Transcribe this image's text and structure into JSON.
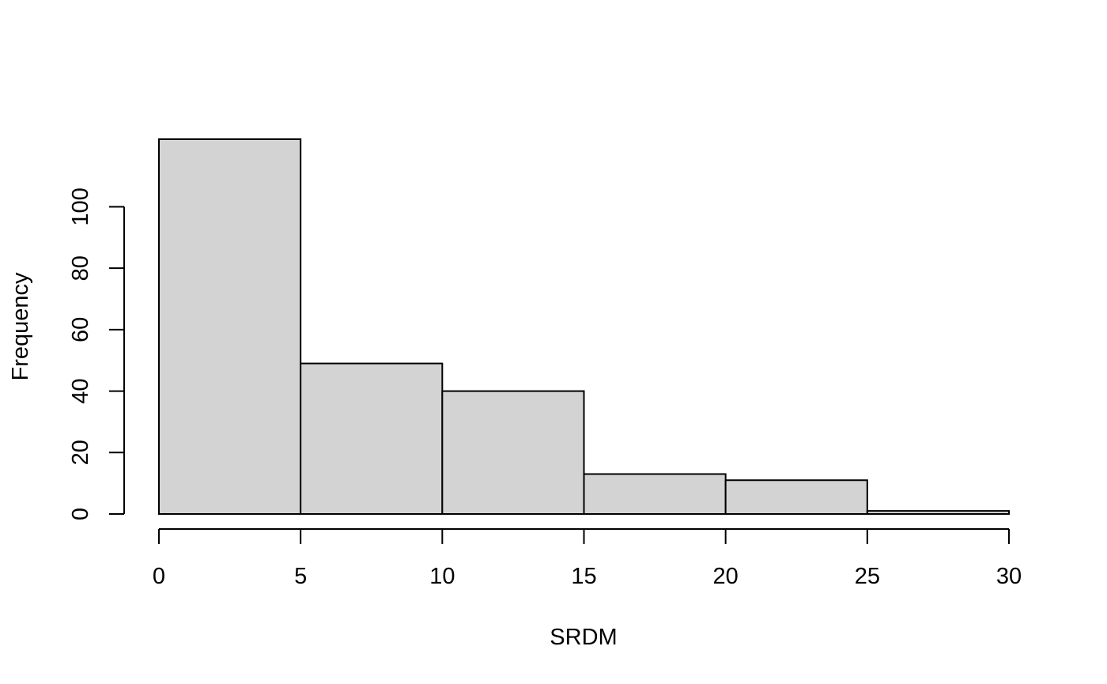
{
  "chart_data": {
    "type": "bar",
    "title": "",
    "xlabel": "SRDM",
    "ylabel": "Frequency",
    "bins": [
      {
        "start": 0,
        "end": 5,
        "count": 122
      },
      {
        "start": 5,
        "end": 10,
        "count": 49
      },
      {
        "start": 10,
        "end": 15,
        "count": 40
      },
      {
        "start": 15,
        "end": 20,
        "count": 13
      },
      {
        "start": 20,
        "end": 25,
        "count": 11
      },
      {
        "start": 25,
        "end": 30,
        "count": 1
      }
    ],
    "xlim": [
      0,
      30
    ],
    "ylim": [
      0,
      122
    ],
    "xticks": [
      0,
      5,
      10,
      15,
      20,
      25,
      30
    ],
    "yticks": [
      0,
      20,
      40,
      60,
      80,
      100
    ],
    "colors": {
      "bar_fill": "#d3d3d3",
      "bar_stroke": "#000000"
    },
    "grid": false
  }
}
